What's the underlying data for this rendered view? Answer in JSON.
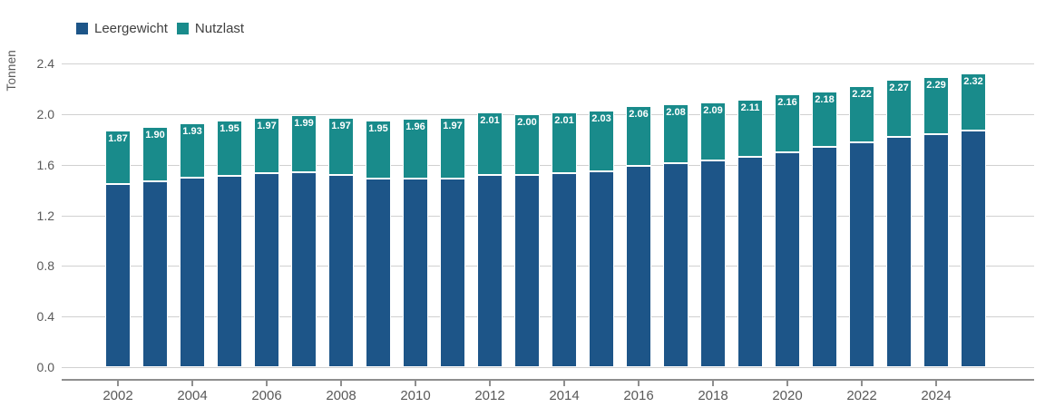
{
  "chart": {
    "y_axis_title": "Tonnen",
    "y_ticks": [
      "0.0",
      "0.4",
      "0.8",
      "1.2",
      "1.6",
      "2.0",
      "2.4"
    ],
    "x_ticks": [
      "2002",
      "2004",
      "2006",
      "2008",
      "2010",
      "2012",
      "2014",
      "2016",
      "2018",
      "2020",
      "2022",
      "2024"
    ]
  },
  "legend": {
    "items": [
      {
        "label": "Leergewicht",
        "color": "#1d5588"
      },
      {
        "label": "Nutzlast",
        "color": "#198b8b"
      }
    ]
  },
  "colors": {
    "leergewicht": "#1d5588",
    "nutzlast": "#198b8b",
    "grid": "#d1d1d1",
    "axis": "#8f8f8f",
    "tick_text": "#595959",
    "bar_label": "#ffffff",
    "background": "#ffffff"
  },
  "chart_data": {
    "type": "bar",
    "stacked": true,
    "title": "",
    "ylabel": "Tonnen",
    "xlabel": "",
    "ylim": [
      0,
      2.4
    ],
    "grid": true,
    "legend_position": "top-left",
    "categories": [
      2002,
      2003,
      2004,
      2005,
      2006,
      2007,
      2008,
      2009,
      2010,
      2011,
      2012,
      2013,
      2014,
      2015,
      2016,
      2017,
      2018,
      2019,
      2020,
      2021,
      2022,
      2023,
      2024,
      2025
    ],
    "series": [
      {
        "name": "Leergewicht",
        "color": "#1d5588",
        "values": [
          1.45,
          1.47,
          1.5,
          1.51,
          1.53,
          1.54,
          1.52,
          1.49,
          1.49,
          1.49,
          1.52,
          1.52,
          1.53,
          1.55,
          1.59,
          1.61,
          1.63,
          1.66,
          1.7,
          1.74,
          1.78,
          1.82,
          1.84,
          1.87
        ]
      },
      {
        "name": "Nutzlast",
        "color": "#198b8b",
        "values": [
          0.42,
          0.43,
          0.43,
          0.44,
          0.44,
          0.45,
          0.45,
          0.46,
          0.47,
          0.48,
          0.49,
          0.48,
          0.48,
          0.48,
          0.47,
          0.47,
          0.46,
          0.45,
          0.46,
          0.44,
          0.44,
          0.45,
          0.45,
          0.45
        ]
      }
    ],
    "total_labels": [
      "1.87",
      "1.90",
      "1.93",
      "1.95",
      "1.97",
      "1.99",
      "1.97",
      "1.95",
      "1.96",
      "1.97",
      "2.01",
      "2.00",
      "2.01",
      "2.03",
      "2.06",
      "2.08",
      "2.09",
      "2.11",
      "2.16",
      "2.18",
      "2.22",
      "2.27",
      "2.29",
      "2.32"
    ]
  }
}
